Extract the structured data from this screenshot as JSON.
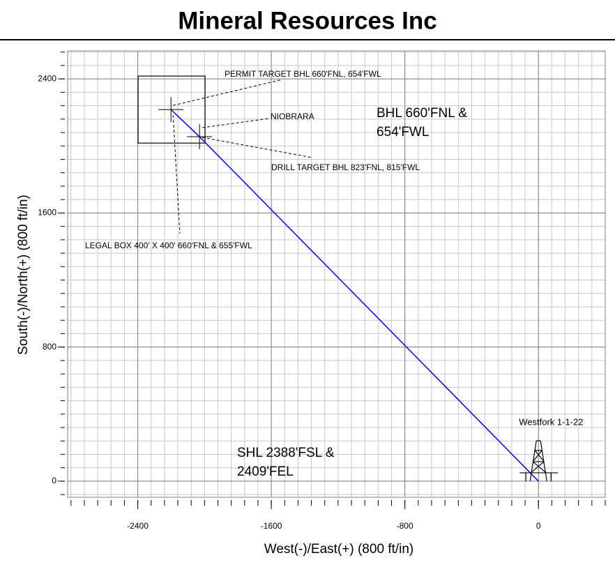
{
  "chart_data": {
    "type": "line",
    "title": "Mineral Resources Inc",
    "xlabel": "West(-)/East(+) (800 ft/in)",
    "ylabel": "South(-)/North(+) (800 ft/in)",
    "xlim": [
      -2820,
      400
    ],
    "ylim": [
      -96,
      2567
    ],
    "xticks": [
      -2400,
      -1600,
      -800,
      0
    ],
    "yticks": [
      0,
      800,
      1600,
      2400
    ],
    "minor_step": 80,
    "grid": true,
    "well_path": {
      "color": "#0000ff",
      "x": [
        0,
        -2030,
        -2201
      ],
      "y": [
        0,
        2055,
        2217
      ]
    },
    "targets": {
      "x": [
        -2201,
        -2030
      ],
      "y": [
        2217,
        2055
      ]
    },
    "legal_box": {
      "x": [
        -2398,
        -1997
      ],
      "y": [
        2017,
        2417
      ]
    },
    "well": {
      "name": "Westfork 1-1-22",
      "x": 0,
      "y": 0
    },
    "annotations": [
      [
        "PERMIT TARGET BHL 660'FNL, 654'FWL"
      ],
      [
        "NIOBRARA"
      ],
      [
        "BHL 660'FNL &",
        "654'FWL"
      ],
      [
        "DRILL TARGET BHL 823'FNL, 815'FWL"
      ],
      [
        "LEGAL BOX 400' X 400' 660'FNL & 655'FWL"
      ],
      [
        "SHL 2388'FSL &",
        "2409'FEL"
      ]
    ]
  }
}
